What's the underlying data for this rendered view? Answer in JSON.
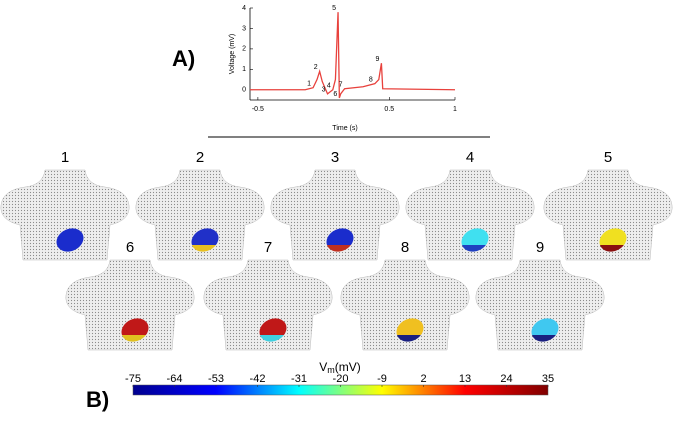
{
  "panel_a_label": "A)",
  "panel_b_label": "B)",
  "chart_data": {
    "type": "line",
    "x_label": "Time (s)",
    "y_label": "Voltage (mV)",
    "x": [
      -0.56,
      -0.14,
      -0.08,
      -0.05,
      -0.03,
      -0.01,
      0.03,
      0.07,
      0.09,
      0.11,
      0.12,
      0.13,
      0.16,
      0.3,
      0.39,
      0.42,
      0.44,
      0.45,
      1.0
    ],
    "series": [
      {
        "color": "#e8413c",
        "values": [
          0,
          0,
          0.1,
          0.5,
          0.9,
          0.4,
          -0.2,
          0,
          0.5,
          3.8,
          -0.4,
          -0.2,
          0.05,
          0.15,
          0.3,
          0.5,
          1.3,
          0.05,
          0
        ]
      }
    ],
    "xlim": [
      -0.56,
      1
    ],
    "xticks": [
      -0.5,
      0.5,
      1
    ],
    "ylim": [
      -0.5,
      4
    ],
    "yticks": [
      0,
      1,
      2,
      3,
      4
    ],
    "annotations": [
      {
        "text": "1",
        "x": -0.08,
        "y": 0.1
      },
      {
        "text": "2",
        "x": -0.03,
        "y": 0.9
      },
      {
        "text": "3",
        "x": 0.03,
        "y": -0.2
      },
      {
        "text": "4",
        "x": 0.07,
        "y": 0
      },
      {
        "text": "5",
        "x": 0.11,
        "y": 3.8
      },
      {
        "text": "6",
        "x": 0.12,
        "y": -0.4
      },
      {
        "text": "7",
        "x": 0.16,
        "y": 0.05
      },
      {
        "text": "8",
        "x": 0.39,
        "y": 0.3
      },
      {
        "text": "9",
        "x": 0.44,
        "y": 1.3
      }
    ]
  },
  "torsos": [
    {
      "label": "1",
      "colors": [
        "#1a2ccc",
        "#1a2ccc"
      ]
    },
    {
      "label": "2",
      "colors": [
        "#2030c8",
        "#e8c020"
      ]
    },
    {
      "label": "3",
      "colors": [
        "#1a2ccc",
        "#c03020"
      ]
    },
    {
      "label": "4",
      "colors": [
        "#40e0f0",
        "#2040c0"
      ]
    },
    {
      "label": "5",
      "colors": [
        "#f0e020",
        "#8a1010"
      ]
    },
    {
      "label": "6",
      "colors": [
        "#c01818",
        "#e0c020"
      ]
    },
    {
      "label": "7",
      "colors": [
        "#c01818",
        "#40d0e0"
      ]
    },
    {
      "label": "8",
      "colors": [
        "#f0c020",
        "#1a2080"
      ]
    },
    {
      "label": "9",
      "colors": [
        "#40c8f0",
        "#1a2080"
      ]
    }
  ],
  "colorbar": {
    "title_main": "V",
    "title_sub": "m",
    "title_unit": "(mV)",
    "range": [
      -75,
      35
    ],
    "ticks": [
      -75,
      -64,
      -53,
      -42,
      -31,
      -20,
      -9,
      2,
      13,
      24,
      35
    ],
    "colormap": [
      "#00008f",
      "#0000ff",
      "#00ffff",
      "#ffff00",
      "#ff0000",
      "#800000"
    ]
  }
}
